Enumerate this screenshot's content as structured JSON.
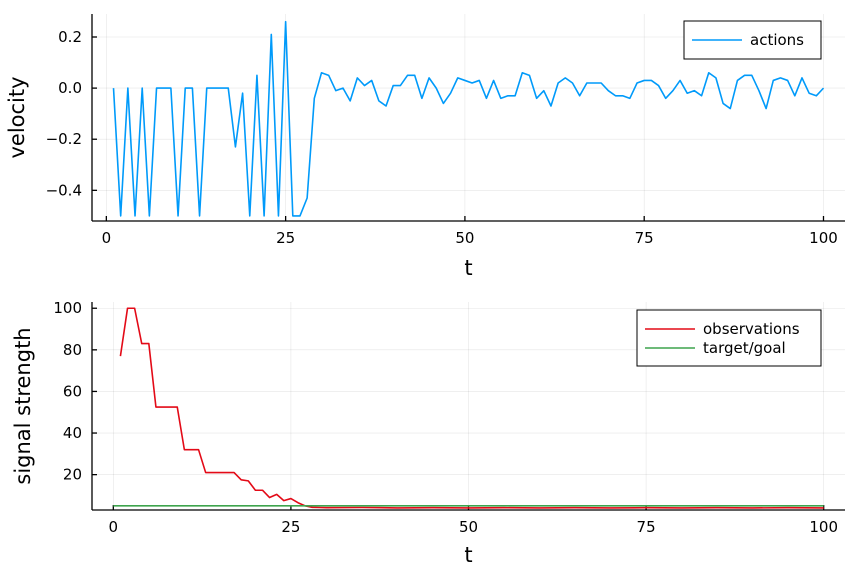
{
  "chart_data": [
    {
      "type": "line",
      "xlabel": "t",
      "ylabel": "velocity",
      "xlim": [
        -2,
        103
      ],
      "ylim": [
        -0.52,
        0.29
      ],
      "xticks": [
        0,
        25,
        50,
        75,
        100
      ],
      "xtick_labels": [
        "0",
        "25",
        "50",
        "75",
        "100"
      ],
      "yticks": [
        -0.4,
        -0.2,
        0.0,
        0.2
      ],
      "ytick_labels": [
        "−0.4",
        "−0.2",
        "0.0",
        "0.2"
      ],
      "grid": true,
      "legend_position": "top-right",
      "series": [
        {
          "name": "actions",
          "color": "#009AFA",
          "x": [
            1,
            2,
            3,
            4,
            5,
            6,
            7,
            8,
            9,
            10,
            11,
            12,
            13,
            14,
            15,
            16,
            17,
            18,
            19,
            20,
            21,
            22,
            23,
            24,
            25,
            26,
            27,
            28,
            29,
            30,
            31,
            32,
            33,
            34,
            35,
            36,
            37,
            38,
            39,
            40,
            41,
            42,
            43,
            44,
            45,
            46,
            47,
            48,
            49,
            50,
            51,
            52,
            53,
            54,
            55,
            56,
            57,
            58,
            59,
            60,
            61,
            62,
            63,
            64,
            65,
            66,
            67,
            68,
            69,
            70,
            71,
            72,
            73,
            74,
            75,
            76,
            77,
            78,
            79,
            80,
            81,
            82,
            83,
            84,
            85,
            86,
            87,
            88,
            89,
            90,
            91,
            92,
            93,
            94,
            95,
            96,
            97,
            98,
            99,
            100
          ],
          "y": [
            0.0,
            -0.5,
            0.0,
            -0.5,
            0.0,
            -0.5,
            0.0,
            0.0,
            0.0,
            -0.5,
            0.0,
            0.0,
            -0.5,
            0.0,
            0.0,
            0.0,
            0.0,
            -0.23,
            -0.02,
            -0.5,
            0.05,
            -0.5,
            0.21,
            -0.5,
            0.26,
            -0.5,
            -0.5,
            -0.43,
            -0.04,
            0.06,
            0.05,
            -0.01,
            0.0,
            -0.05,
            0.04,
            0.01,
            0.03,
            -0.05,
            -0.07,
            0.01,
            0.01,
            0.05,
            0.05,
            -0.04,
            0.04,
            0.0,
            -0.06,
            -0.02,
            0.04,
            0.03,
            0.02,
            0.03,
            -0.04,
            0.03,
            -0.04,
            -0.03,
            -0.03,
            0.06,
            0.05,
            -0.04,
            -0.01,
            -0.07,
            0.02,
            0.04,
            0.02,
            -0.03,
            0.02,
            0.02,
            0.02,
            -0.01,
            -0.03,
            -0.03,
            -0.04,
            0.02,
            0.03,
            0.03,
            0.01,
            -0.04,
            -0.01,
            0.03,
            -0.02,
            -0.01,
            -0.03,
            0.06,
            0.04,
            -0.06,
            -0.08,
            0.03,
            0.05,
            0.05,
            -0.01,
            -0.08,
            0.03,
            0.04,
            0.03,
            -0.03,
            0.04,
            -0.02,
            -0.03,
            0.0
          ]
        }
      ]
    },
    {
      "type": "line",
      "xlabel": "t",
      "ylabel": "signal strength",
      "xlim": [
        -3,
        103
      ],
      "ylim": [
        3,
        103
      ],
      "xticks": [
        0,
        25,
        50,
        75,
        100
      ],
      "xtick_labels": [
        "0",
        "25",
        "50",
        "75",
        "100"
      ],
      "yticks": [
        20,
        40,
        60,
        80,
        100
      ],
      "ytick_labels": [
        "20",
        "40",
        "60",
        "80",
        "100"
      ],
      "grid": true,
      "legend_position": "top-right",
      "series": [
        {
          "name": "observations",
          "color": "#E30A17",
          "x": [
            1,
            2,
            3,
            4,
            5,
            6,
            7,
            8,
            9,
            10,
            11,
            12,
            13,
            14,
            15,
            16,
            17,
            18,
            19,
            20,
            21,
            22,
            23,
            24,
            25,
            26,
            27,
            28,
            29,
            30,
            35,
            40,
            45,
            50,
            55,
            60,
            65,
            70,
            75,
            80,
            85,
            90,
            95,
            100
          ],
          "y": [
            77,
            100,
            100,
            83,
            83,
            52.5,
            52.5,
            52.5,
            52.5,
            32,
            32,
            32,
            21,
            21,
            21,
            21,
            21,
            17.5,
            17,
            12.5,
            12.5,
            9,
            10.5,
            7.5,
            8.5,
            6.5,
            5,
            4.3,
            4.2,
            4.1,
            4.2,
            4.0,
            4.1,
            4.0,
            4.1,
            4.0,
            4.1,
            4.0,
            4.1,
            4.0,
            4.1,
            4.0,
            4.1,
            4.0
          ]
        },
        {
          "name": "target/goal",
          "color": "#3DA44D",
          "x": [
            0,
            100
          ],
          "y": [
            5,
            5
          ]
        }
      ]
    }
  ]
}
